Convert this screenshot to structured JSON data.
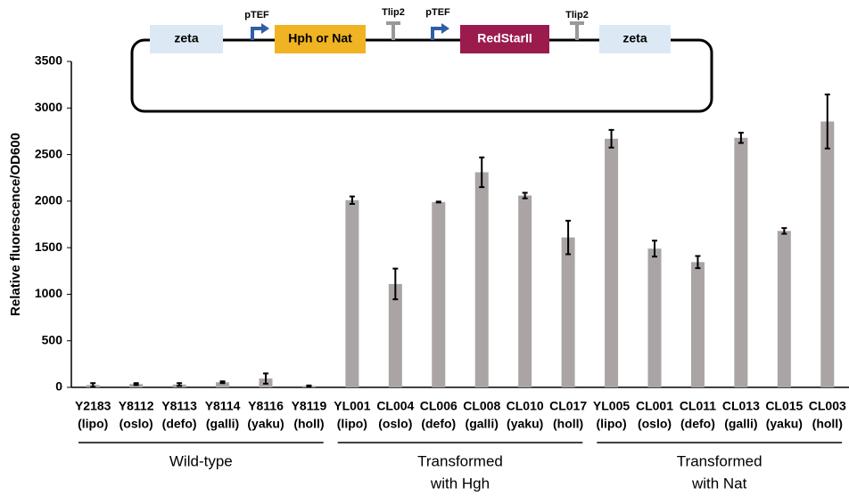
{
  "chart_data": {
    "type": "bar",
    "y_label": "Relative fluorescence/OD600",
    "categories": [
      "Y2183",
      "Y8112",
      "Y8113",
      "Y8114",
      "Y8116",
      "Y8119",
      "YL001",
      "CL004",
      "CL006",
      "CL008",
      "CL010",
      "CL017",
      "YL005",
      "CL001",
      "CL011",
      "CL013",
      "CL015",
      "CL003"
    ],
    "category_notes": [
      "(lipo)",
      "(oslo)",
      "(defo)",
      "(galli)",
      "(yaku)",
      "(holl)",
      "(lipo)",
      "(oslo)",
      "(defo)",
      "(galli)",
      "(yaku)",
      "(holl)",
      "(lipo)",
      "(oslo)",
      "(defo)",
      "(galli)",
      "(yaku)",
      "(holl)"
    ],
    "values": [
      25,
      35,
      30,
      55,
      95,
      15,
      2010,
      1110,
      1990,
      2310,
      2060,
      1610,
      2670,
      1490,
      1345,
      2680,
      1680,
      2855
    ],
    "errors": [
      20,
      10,
      15,
      10,
      55,
      5,
      40,
      165,
      5,
      160,
      30,
      180,
      95,
      85,
      65,
      55,
      30,
      290
    ],
    "color": "#aaa4a4",
    "ylim": [
      0,
      3500
    ],
    "yticks": [
      0,
      500,
      1000,
      1500,
      2000,
      2500,
      3000,
      3500
    ],
    "groups": [
      {
        "label": [
          "Wild-type"
        ],
        "size": 6
      },
      {
        "label": [
          "Transformed",
          "with Hgh"
        ],
        "size": 6
      },
      {
        "label": [
          "Transformed",
          "with Nat"
        ],
        "size": 6
      }
    ]
  },
  "diagram": {
    "zeta_left": "zeta",
    "promoter_1": "pTEF",
    "marker": "Hph or Nat",
    "terminator_1": "Tlip2",
    "promoter_2": "pTEF",
    "reporter": "RedStarII",
    "terminator_2": "Tlip2",
    "zeta_right": "zeta"
  }
}
